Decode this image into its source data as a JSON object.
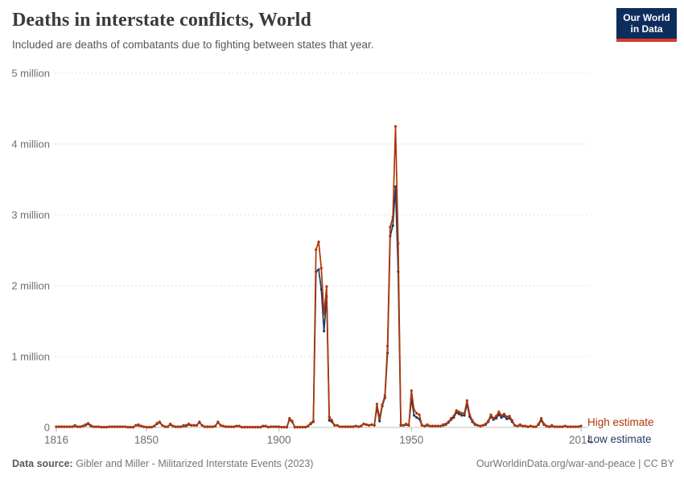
{
  "header": {
    "title": "Deaths in interstate conflicts, World",
    "subtitle": "Included are deaths of combatants due to fighting between states that year."
  },
  "logo": {
    "line1": "Our World",
    "line2": "in Data",
    "bg_color": "#0d2e5c",
    "bar_color": "#d93a2b"
  },
  "colors": {
    "high_series": "#b13507",
    "low_series": "#1d3d63",
    "gridline": "#dcdcdc",
    "zero_line": "#bdbdbd",
    "tick_text": "#6e6e6e"
  },
  "legend": {
    "items": [
      {
        "label": "High estimate"
      },
      {
        "label": "Low estimate"
      }
    ]
  },
  "footer": {
    "source_label": "Data source:",
    "source_value": " Gibler and Miller - Militarized Interstate Events (2023)",
    "link": "OurWorldinData.org/war-and-peace | CC BY"
  },
  "chart_data": {
    "type": "line",
    "title": "Deaths in interstate conflicts, World",
    "unit": "deaths, millions",
    "markers": true,
    "grid": "horizontal dashed",
    "legend_position": "right of line ends",
    "x_start": 1816,
    "x_end": 2014,
    "x_ticks": [
      1816,
      1850,
      1900,
      1950,
      2014
    ],
    "ylim": [
      0,
      5
    ],
    "y_ticks": [
      {
        "value": 0,
        "label": "0"
      },
      {
        "value": 1,
        "label": "1 million"
      },
      {
        "value": 2,
        "label": "2 million"
      },
      {
        "value": 3,
        "label": "3 million"
      },
      {
        "value": 4,
        "label": "4 million"
      },
      {
        "value": 5,
        "label": "5 million"
      }
    ],
    "series": [
      {
        "name": "High estimate",
        "color": "#b13507",
        "values": [
          0.01,
          0.01,
          0.01,
          0.01,
          0.01,
          0.01,
          0.01,
          0.03,
          0.01,
          0.01,
          0.02,
          0.04,
          0.06,
          0.03,
          0.01,
          0.01,
          0.01,
          0.005,
          0.005,
          0.005,
          0.01,
          0.01,
          0.01,
          0.01,
          0.01,
          0.01,
          0.01,
          0.005,
          0.005,
          0.005,
          0.03,
          0.04,
          0.02,
          0.01,
          0.005,
          0.005,
          0.005,
          0.02,
          0.06,
          0.08,
          0.03,
          0.01,
          0.01,
          0.05,
          0.02,
          0.01,
          0.01,
          0.01,
          0.03,
          0.03,
          0.05,
          0.03,
          0.03,
          0.03,
          0.08,
          0.03,
          0.01,
          0.01,
          0.01,
          0.01,
          0.02,
          0.08,
          0.03,
          0.02,
          0.01,
          0.01,
          0.01,
          0.01,
          0.02,
          0.02,
          0.005,
          0.005,
          0.005,
          0.005,
          0.005,
          0.005,
          0.005,
          0.005,
          0.02,
          0.02,
          0.005,
          0.01,
          0.01,
          0.01,
          0.01,
          0.005,
          0.005,
          0.005,
          0.13,
          0.09,
          0.005,
          0.005,
          0.005,
          0.005,
          0.005,
          0.02,
          0.06,
          0.09,
          2.51,
          2.62,
          2.25,
          1.6,
          1.99,
          0.15,
          0.1,
          0.03,
          0.03,
          0.01,
          0.01,
          0.01,
          0.01,
          0.01,
          0.01,
          0.02,
          0.01,
          0.02,
          0.05,
          0.04,
          0.03,
          0.04,
          0.03,
          0.33,
          0.13,
          0.32,
          0.45,
          1.15,
          2.83,
          2.97,
          4.25,
          2.6,
          0.04,
          0.03,
          0.05,
          0.03,
          0.52,
          0.25,
          0.2,
          0.18,
          0.03,
          0.02,
          0.04,
          0.02,
          0.02,
          0.02,
          0.02,
          0.02,
          0.04,
          0.05,
          0.08,
          0.13,
          0.16,
          0.24,
          0.22,
          0.2,
          0.2,
          0.38,
          0.18,
          0.1,
          0.05,
          0.03,
          0.02,
          0.03,
          0.05,
          0.09,
          0.18,
          0.13,
          0.16,
          0.22,
          0.17,
          0.19,
          0.15,
          0.16,
          0.1,
          0.03,
          0.02,
          0.04,
          0.02,
          0.02,
          0.01,
          0.02,
          0.01,
          0.01,
          0.05,
          0.13,
          0.05,
          0.02,
          0.01,
          0.03,
          0.01,
          0.01,
          0.01,
          0.01,
          0.02,
          0.01,
          0.01,
          0.01,
          0.01,
          0.01,
          0.02
        ]
      },
      {
        "name": "Low estimate",
        "color": "#1d3d63",
        "values": [
          0.01,
          0.01,
          0.01,
          0.01,
          0.01,
          0.01,
          0.01,
          0.02,
          0.01,
          0.01,
          0.02,
          0.03,
          0.05,
          0.02,
          0.01,
          0.01,
          0.01,
          0.005,
          0.005,
          0.005,
          0.01,
          0.01,
          0.01,
          0.01,
          0.01,
          0.01,
          0.01,
          0.005,
          0.005,
          0.005,
          0.03,
          0.03,
          0.02,
          0.01,
          0.005,
          0.005,
          0.005,
          0.02,
          0.05,
          0.07,
          0.03,
          0.01,
          0.01,
          0.04,
          0.02,
          0.01,
          0.01,
          0.01,
          0.02,
          0.02,
          0.04,
          0.03,
          0.03,
          0.03,
          0.07,
          0.03,
          0.01,
          0.01,
          0.01,
          0.01,
          0.02,
          0.07,
          0.03,
          0.02,
          0.01,
          0.01,
          0.01,
          0.01,
          0.02,
          0.02,
          0.005,
          0.005,
          0.005,
          0.005,
          0.005,
          0.005,
          0.005,
          0.005,
          0.02,
          0.02,
          0.005,
          0.01,
          0.01,
          0.01,
          0.01,
          0.005,
          0.005,
          0.005,
          0.11,
          0.08,
          0.005,
          0.005,
          0.005,
          0.005,
          0.005,
          0.02,
          0.05,
          0.08,
          2.2,
          2.23,
          1.95,
          1.36,
          1.85,
          0.1,
          0.08,
          0.03,
          0.03,
          0.01,
          0.01,
          0.01,
          0.01,
          0.01,
          0.01,
          0.02,
          0.01,
          0.02,
          0.05,
          0.04,
          0.03,
          0.04,
          0.03,
          0.28,
          0.09,
          0.3,
          0.42,
          1.05,
          2.7,
          2.85,
          3.4,
          2.2,
          0.03,
          0.03,
          0.04,
          0.03,
          0.4,
          0.17,
          0.14,
          0.12,
          0.03,
          0.02,
          0.03,
          0.02,
          0.02,
          0.02,
          0.02,
          0.02,
          0.03,
          0.04,
          0.07,
          0.11,
          0.14,
          0.21,
          0.19,
          0.17,
          0.17,
          0.33,
          0.15,
          0.08,
          0.04,
          0.03,
          0.02,
          0.03,
          0.04,
          0.08,
          0.15,
          0.11,
          0.13,
          0.18,
          0.14,
          0.16,
          0.12,
          0.13,
          0.08,
          0.03,
          0.02,
          0.03,
          0.02,
          0.02,
          0.01,
          0.02,
          0.01,
          0.01,
          0.04,
          0.1,
          0.04,
          0.02,
          0.01,
          0.02,
          0.01,
          0.01,
          0.01,
          0.01,
          0.02,
          0.01,
          0.01,
          0.01,
          0.01,
          0.01,
          0.02
        ]
      }
    ]
  }
}
